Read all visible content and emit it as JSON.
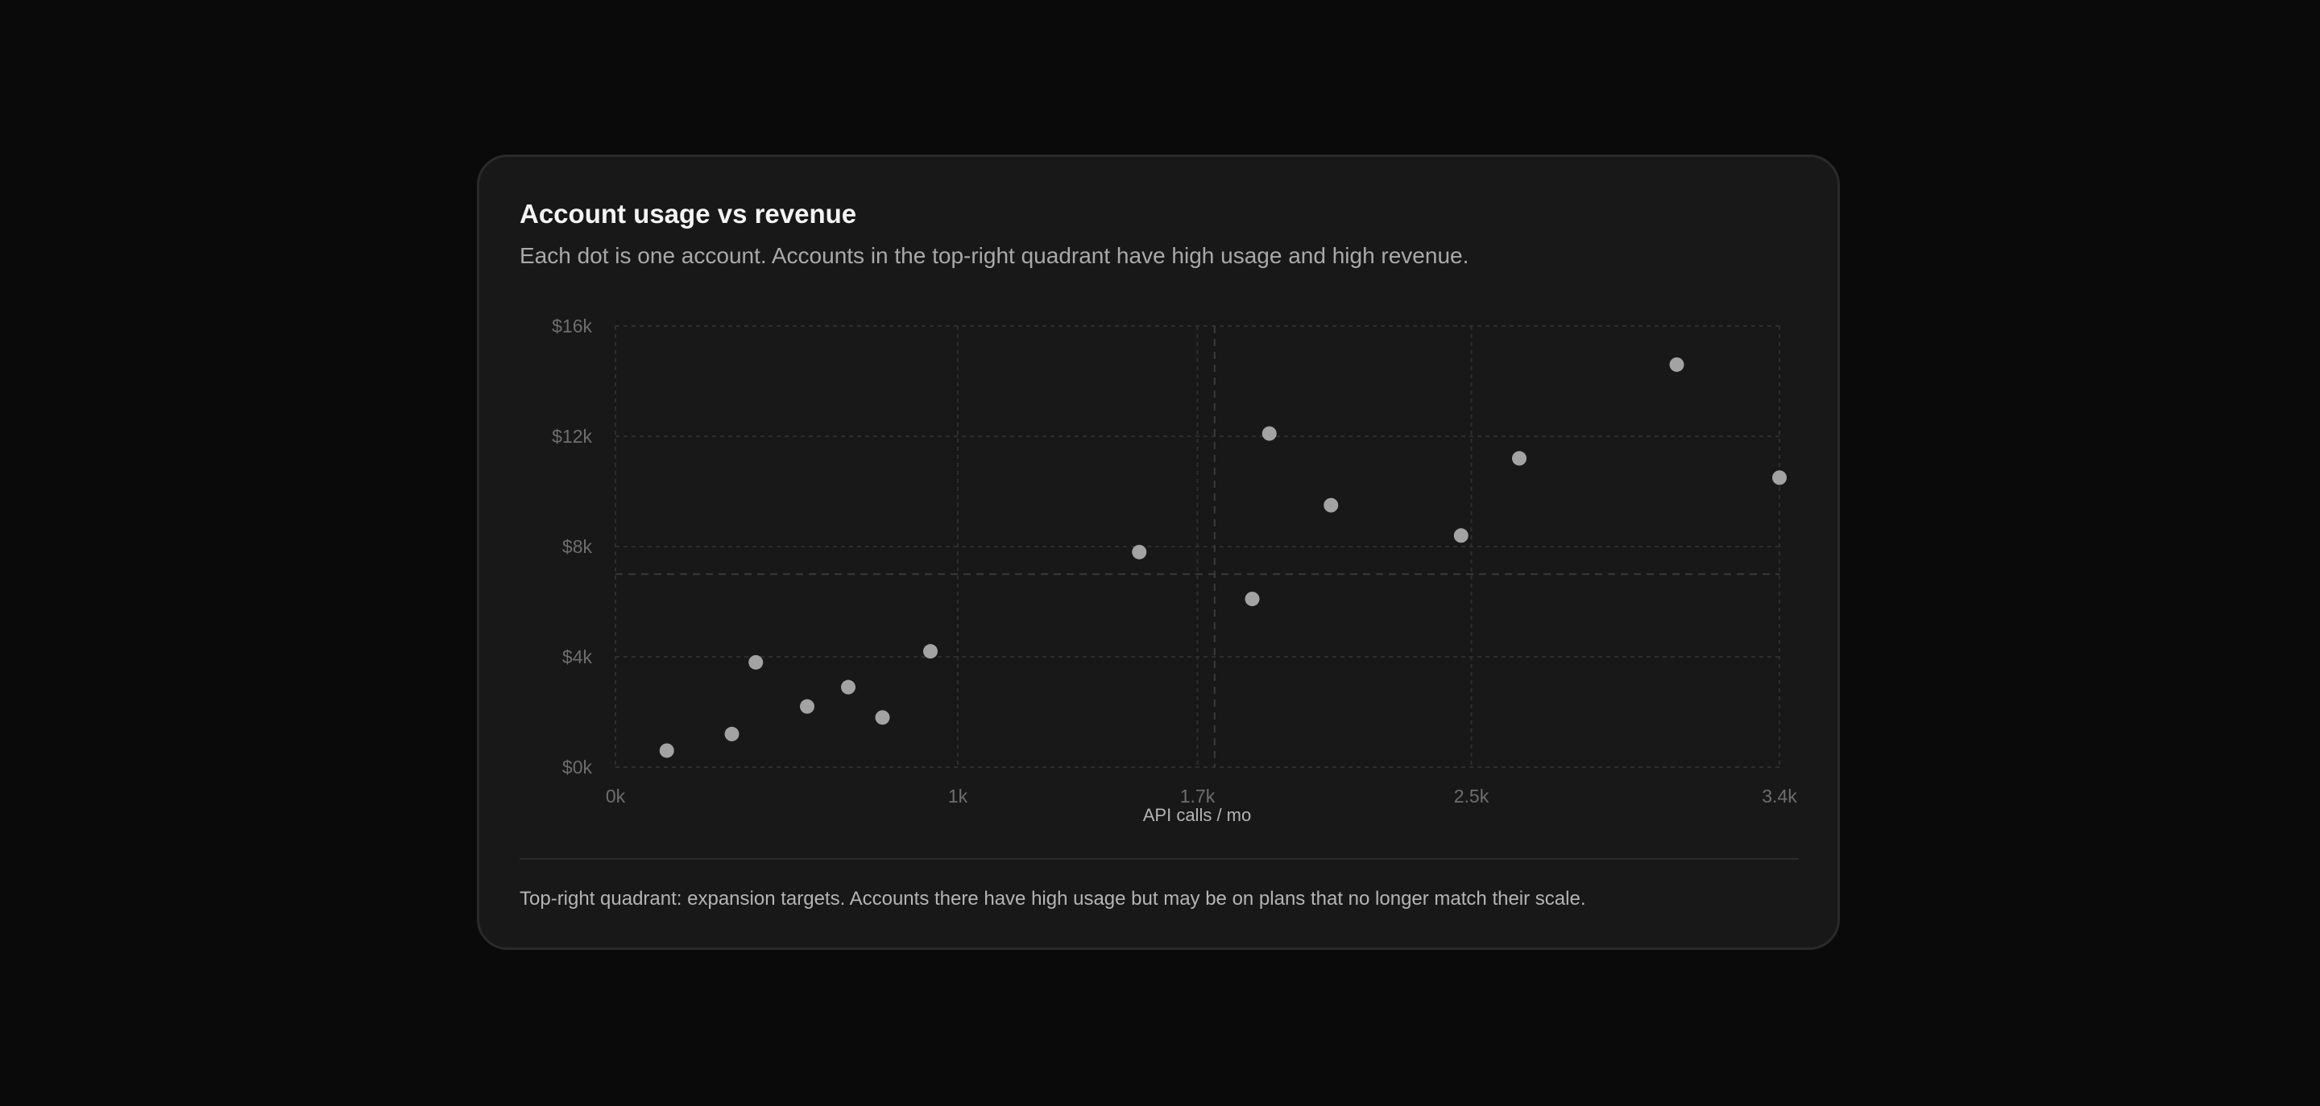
{
  "card": {
    "title": "Account usage vs revenue",
    "subtitle": "Each dot is one account. Accounts in the top-right quadrant have high usage and high revenue.",
    "footnote": "Top-right quadrant: expansion targets. Accounts there have high usage but may be on plans that no longer match their scale."
  },
  "colors": {
    "background": "#0a0a0a",
    "card": "#181818",
    "dot": "#a3a3a3",
    "grid": "#2e2e2e",
    "tick_label": "#6e6e6e"
  },
  "chart_data": {
    "type": "scatter",
    "xlabel": "API calls / mo",
    "ylabel": "",
    "xlim": [
      0,
      3400
    ],
    "ylim": [
      0,
      16000
    ],
    "x_ticks": [
      {
        "value": 0,
        "label": "0k"
      },
      {
        "value": 1000,
        "label": "1k"
      },
      {
        "value": 1700,
        "label": "1.7k"
      },
      {
        "value": 2500,
        "label": "2.5k"
      },
      {
        "value": 3400,
        "label": "3.4k"
      }
    ],
    "y_ticks": [
      {
        "value": 0,
        "label": "$0k"
      },
      {
        "value": 4000,
        "label": "$4k"
      },
      {
        "value": 8000,
        "label": "$8k"
      },
      {
        "value": 12000,
        "label": "$12k"
      },
      {
        "value": 16000,
        "label": "$16k"
      }
    ],
    "quadrant_dividers": {
      "x": 1750,
      "y": 7000
    },
    "grid": true,
    "points": [
      {
        "x": 150,
        "y": 600
      },
      {
        "x": 340,
        "y": 1200
      },
      {
        "x": 410,
        "y": 3800
      },
      {
        "x": 560,
        "y": 2200
      },
      {
        "x": 680,
        "y": 2900
      },
      {
        "x": 780,
        "y": 1800
      },
      {
        "x": 920,
        "y": 4200
      },
      {
        "x": 1530,
        "y": 7800
      },
      {
        "x": 1860,
        "y": 6100
      },
      {
        "x": 1910,
        "y": 12100
      },
      {
        "x": 2090,
        "y": 9500
      },
      {
        "x": 2470,
        "y": 8400
      },
      {
        "x": 2640,
        "y": 11200
      },
      {
        "x": 3100,
        "y": 14600
      },
      {
        "x": 3400,
        "y": 10500
      }
    ]
  }
}
